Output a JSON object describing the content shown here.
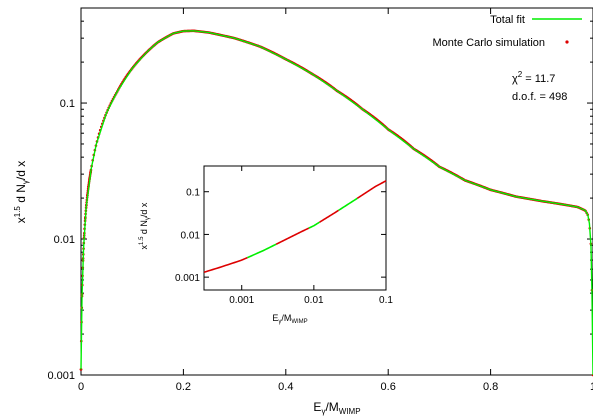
{
  "chart_data": [
    {
      "type": "line",
      "name": "main",
      "xlabel": "E_γ/M_WIMP",
      "xlabel_main": "E",
      "xlabel_sub1": "γ",
      "xlabel_mid": "/M",
      "xlabel_sub2": "WIMP",
      "ylabel": "x^1.5 d N_γ/d x",
      "ylabel_a": "x",
      "ylabel_sup": "1.5",
      "ylabel_b": " d N",
      "ylabel_sub": "γ",
      "ylabel_c": "/d x",
      "xlim": [
        0,
        1
      ],
      "ylim": [
        0.001,
        0.5
      ],
      "yscale": "log",
      "xticks": [
        0,
        0.2,
        0.4,
        0.6,
        0.8,
        1
      ],
      "xtick_labels": [
        "0",
        "0.2",
        "0.4",
        "0.6",
        "0.8",
        "1"
      ],
      "yticks": [
        0.001,
        0.01,
        0.1
      ],
      "ytick_labels": [
        "0.001",
        "0.01",
        "0.1"
      ],
      "legend_position": "top-right",
      "series": [
        {
          "name": "Total fit",
          "style": "line",
          "color": "#00ee00",
          "x": [
            0.0,
            0.002,
            0.005,
            0.01,
            0.02,
            0.03,
            0.05,
            0.07,
            0.1,
            0.13,
            0.15,
            0.18,
            0.2,
            0.22,
            0.25,
            0.3,
            0.35,
            0.4,
            0.45,
            0.5,
            0.55,
            0.6,
            0.65,
            0.7,
            0.75,
            0.8,
            0.85,
            0.9,
            0.94,
            0.97,
            0.985,
            0.99,
            0.993,
            0.996,
            0.998,
            1.0
          ],
          "y": [
            0.0011,
            0.0038,
            0.0085,
            0.017,
            0.033,
            0.05,
            0.085,
            0.12,
            0.18,
            0.24,
            0.28,
            0.325,
            0.338,
            0.34,
            0.33,
            0.3,
            0.26,
            0.21,
            0.165,
            0.123,
            0.09,
            0.064,
            0.046,
            0.034,
            0.027,
            0.023,
            0.0205,
            0.019,
            0.018,
            0.0172,
            0.0162,
            0.015,
            0.013,
            0.009,
            0.004,
            0.001
          ]
        },
        {
          "name": "Monte Carlo simulation",
          "style": "points",
          "color": "#dd0000",
          "x": [
            0.0,
            0.002,
            0.005,
            0.01,
            0.02,
            0.03,
            0.05,
            0.07,
            0.1,
            0.13,
            0.15,
            0.18,
            0.2,
            0.22,
            0.25,
            0.3,
            0.35,
            0.4,
            0.45,
            0.5,
            0.55,
            0.6,
            0.65,
            0.7,
            0.75,
            0.8,
            0.85,
            0.9,
            0.94,
            0.97,
            0.985,
            0.99,
            0.993,
            0.996,
            0.998,
            1.0
          ],
          "y": [
            0.0011,
            0.0038,
            0.0085,
            0.017,
            0.033,
            0.05,
            0.085,
            0.12,
            0.18,
            0.24,
            0.28,
            0.325,
            0.338,
            0.34,
            0.33,
            0.3,
            0.26,
            0.21,
            0.165,
            0.123,
            0.09,
            0.064,
            0.046,
            0.034,
            0.027,
            0.023,
            0.0205,
            0.019,
            0.018,
            0.0172,
            0.0162,
            0.015,
            0.013,
            0.009,
            0.004,
            0.001
          ]
        }
      ],
      "annotations": {
        "chi_label": "χ",
        "chi_sup": "2",
        "chi_value": " = 11.7",
        "dof": "d.o.f. = 498"
      }
    },
    {
      "type": "line",
      "name": "inset",
      "xlabel": "E_γ/M_WIMP",
      "xlabel_main": "E",
      "xlabel_sub1": "γ",
      "xlabel_mid": "/M",
      "xlabel_sub2": "WIMP",
      "ylabel": "x^1.5 d N_γ/d x",
      "ylabel_a": "x",
      "ylabel_sup": "1.5",
      "ylabel_b": " d N",
      "ylabel_sub": "γ",
      "ylabel_c": "/d x",
      "xscale": "log",
      "yscale": "log",
      "xlim": [
        0.0003,
        0.1
      ],
      "ylim": [
        0.0005,
        0.4
      ],
      "xticks": [
        0.001,
        0.01,
        0.1
      ],
      "xtick_labels": [
        "0.001",
        "0.01",
        "0.1"
      ],
      "yticks": [
        0.001,
        0.01,
        0.1
      ],
      "ytick_labels": [
        "0.001",
        "0.01",
        "0.1"
      ],
      "series": [
        {
          "name": "",
          "x": [
            0.0003,
            0.0005,
            0.001,
            0.002,
            0.004,
            0.007,
            0.01,
            0.02,
            0.04,
            0.07,
            0.1
          ],
          "y": [
            0.0013,
            0.0017,
            0.0025,
            0.0042,
            0.0075,
            0.012,
            0.016,
            0.033,
            0.07,
            0.13,
            0.18
          ],
          "segments": [
            {
              "x_range": [
                0.0003,
                0.0012
              ],
              "color": "#dd0000"
            },
            {
              "x_range": [
                0.0012,
                0.003
              ],
              "color": "#00ee00"
            },
            {
              "x_range": [
                0.003,
                0.0085
              ],
              "color": "#dd0000"
            },
            {
              "x_range": [
                0.0085,
                0.012
              ],
              "color": "#00ee00"
            },
            {
              "x_range": [
                0.012,
                0.022
              ],
              "color": "#dd0000"
            },
            {
              "x_range": [
                0.022,
                0.04
              ],
              "color": "#00ee00"
            },
            {
              "x_range": [
                0.04,
                0.1
              ],
              "color": "#dd0000"
            }
          ]
        }
      ]
    }
  ]
}
